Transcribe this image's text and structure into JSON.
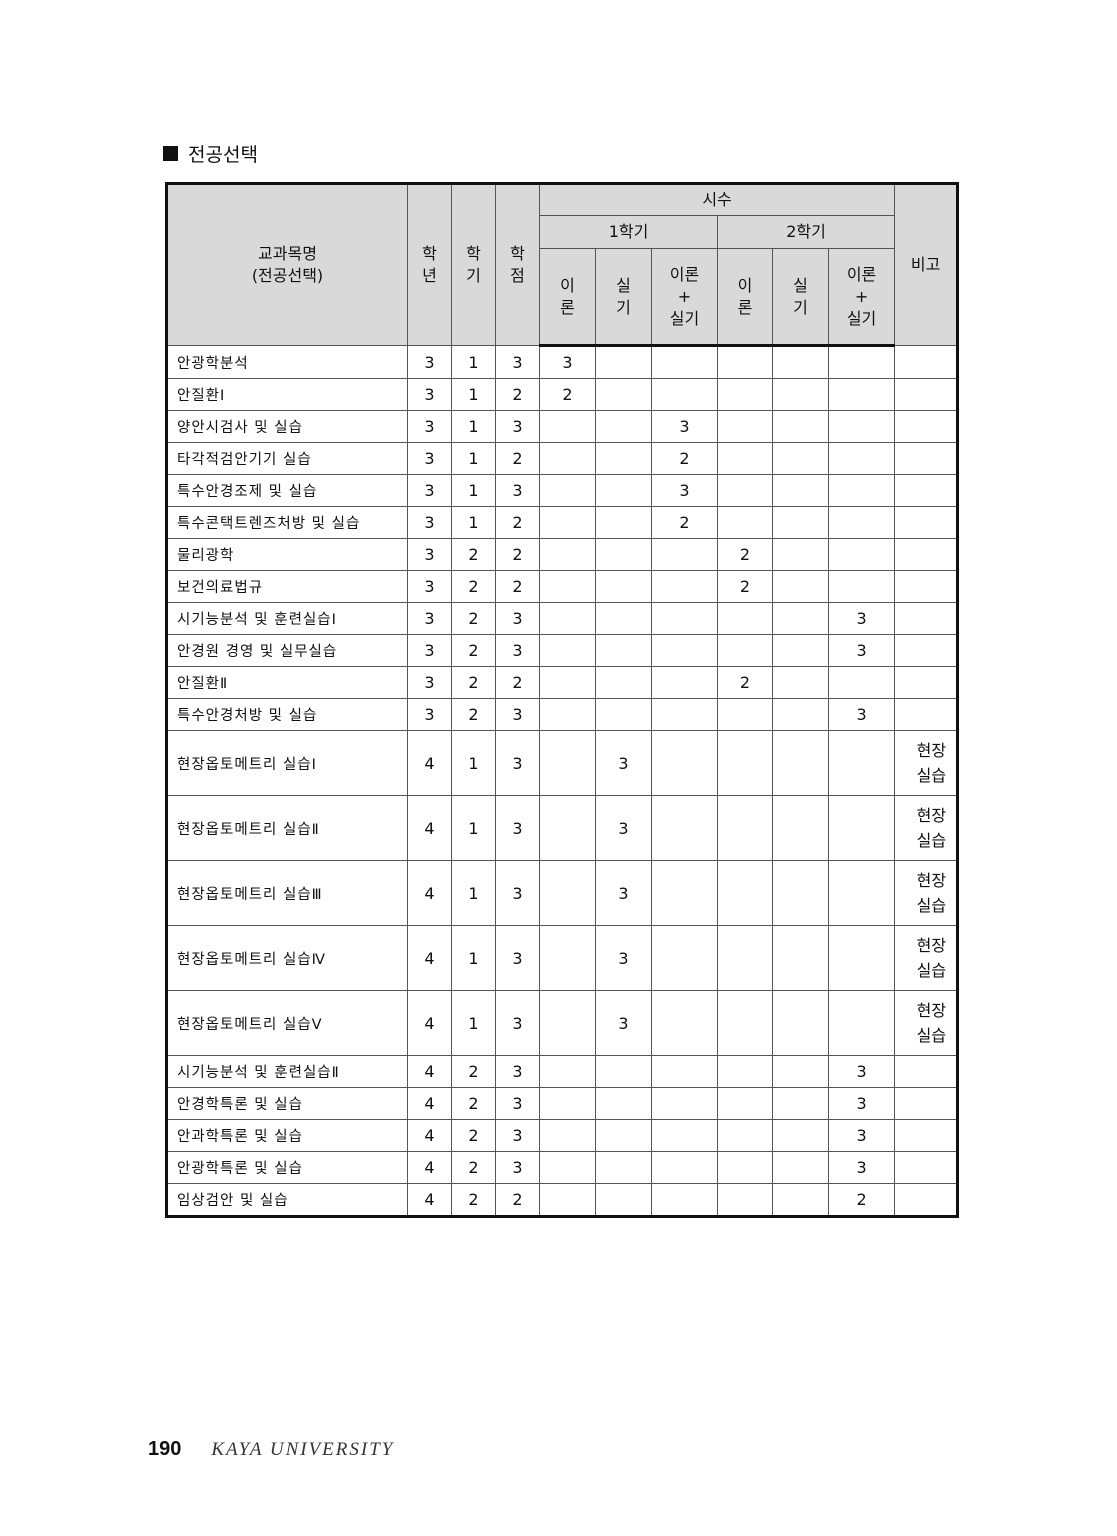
{
  "section_title": "전공선택",
  "header": {
    "name": "교과목명",
    "name_sub": "(전공선택)",
    "year": [
      "학",
      "년"
    ],
    "semester": [
      "학",
      "기"
    ],
    "credit": [
      "학",
      "점"
    ],
    "hours": "시수",
    "sem1": "1학기",
    "sem2": "2학기",
    "theory": [
      "이",
      "론"
    ],
    "practice": [
      "실",
      "기"
    ],
    "both": [
      "이론",
      "+",
      "실기"
    ],
    "remark": "비고"
  },
  "rows": [
    {
      "name": "안광학분석",
      "y": "3",
      "s": "1",
      "c": "3",
      "h": [
        "3",
        "",
        "",
        "",
        "",
        ""
      ],
      "note": ""
    },
    {
      "name": "안질환Ⅰ",
      "y": "3",
      "s": "1",
      "c": "2",
      "h": [
        "2",
        "",
        "",
        "",
        "",
        ""
      ],
      "note": ""
    },
    {
      "name": "양안시검사 및 실습",
      "y": "3",
      "s": "1",
      "c": "3",
      "h": [
        "",
        "",
        "3",
        "",
        "",
        ""
      ],
      "note": ""
    },
    {
      "name": "타각적검안기기 실습",
      "y": "3",
      "s": "1",
      "c": "2",
      "h": [
        "",
        "",
        "2",
        "",
        "",
        ""
      ],
      "note": ""
    },
    {
      "name": "특수안경조제 및 실습",
      "y": "3",
      "s": "1",
      "c": "3",
      "h": [
        "",
        "",
        "3",
        "",
        "",
        ""
      ],
      "note": ""
    },
    {
      "name": "특수콘택트렌즈처방 및 실습",
      "y": "3",
      "s": "1",
      "c": "2",
      "h": [
        "",
        "",
        "2",
        "",
        "",
        ""
      ],
      "note": ""
    },
    {
      "name": "물리광학",
      "y": "3",
      "s": "2",
      "c": "2",
      "h": [
        "",
        "",
        "",
        "2",
        "",
        ""
      ],
      "note": ""
    },
    {
      "name": "보건의료법규",
      "y": "3",
      "s": "2",
      "c": "2",
      "h": [
        "",
        "",
        "",
        "2",
        "",
        ""
      ],
      "note": ""
    },
    {
      "name": "시기능분석 및 훈련실습Ⅰ",
      "y": "3",
      "s": "2",
      "c": "3",
      "h": [
        "",
        "",
        "",
        "",
        "",
        "3"
      ],
      "note": ""
    },
    {
      "name": "안경원 경영 및 실무실습",
      "y": "3",
      "s": "2",
      "c": "3",
      "h": [
        "",
        "",
        "",
        "",
        "",
        "3"
      ],
      "note": ""
    },
    {
      "name": "안질환Ⅱ",
      "y": "3",
      "s": "2",
      "c": "2",
      "h": [
        "",
        "",
        "",
        "2",
        "",
        ""
      ],
      "note": ""
    },
    {
      "name": "특수안경처방 및 실습",
      "y": "3",
      "s": "2",
      "c": "3",
      "h": [
        "",
        "",
        "",
        "",
        "",
        "3"
      ],
      "note": ""
    },
    {
      "name": "현장옵토메트리 실습Ⅰ",
      "y": "4",
      "s": "1",
      "c": "3",
      "h": [
        "",
        "3",
        "",
        "",
        "",
        ""
      ],
      "note": [
        "현장",
        "실습"
      ]
    },
    {
      "name": "현장옵토메트리 실습Ⅱ",
      "y": "4",
      "s": "1",
      "c": "3",
      "h": [
        "",
        "3",
        "",
        "",
        "",
        ""
      ],
      "note": [
        "현장",
        "실습"
      ]
    },
    {
      "name": "현장옵토메트리 실습Ⅲ",
      "y": "4",
      "s": "1",
      "c": "3",
      "h": [
        "",
        "3",
        "",
        "",
        "",
        ""
      ],
      "note": [
        "현장",
        "실습"
      ]
    },
    {
      "name": "현장옵토메트리 실습Ⅳ",
      "y": "4",
      "s": "1",
      "c": "3",
      "h": [
        "",
        "3",
        "",
        "",
        "",
        ""
      ],
      "note": [
        "현장",
        "실습"
      ]
    },
    {
      "name": "현장옵토메트리 실습Ⅴ",
      "y": "4",
      "s": "1",
      "c": "3",
      "h": [
        "",
        "3",
        "",
        "",
        "",
        ""
      ],
      "note": [
        "현장",
        "실습"
      ]
    },
    {
      "name": "시기능분석 및 훈련실습Ⅱ",
      "y": "4",
      "s": "2",
      "c": "3",
      "h": [
        "",
        "",
        "",
        "",
        "",
        "3"
      ],
      "note": ""
    },
    {
      "name": "안경학특론 및 실습",
      "y": "4",
      "s": "2",
      "c": "3",
      "h": [
        "",
        "",
        "",
        "",
        "",
        "3"
      ],
      "note": ""
    },
    {
      "name": "안과학특론 및 실습",
      "y": "4",
      "s": "2",
      "c": "3",
      "h": [
        "",
        "",
        "",
        "",
        "",
        "3"
      ],
      "note": ""
    },
    {
      "name": "안광학특론 및 실습",
      "y": "4",
      "s": "2",
      "c": "3",
      "h": [
        "",
        "",
        "",
        "",
        "",
        "3"
      ],
      "note": ""
    },
    {
      "name": "임상검안 및 실습",
      "y": "4",
      "s": "2",
      "c": "2",
      "h": [
        "",
        "",
        "",
        "",
        "",
        "2"
      ],
      "note": ""
    }
  ],
  "footer": {
    "page_number": "190",
    "university": "KAYA UNIVERSITY"
  }
}
